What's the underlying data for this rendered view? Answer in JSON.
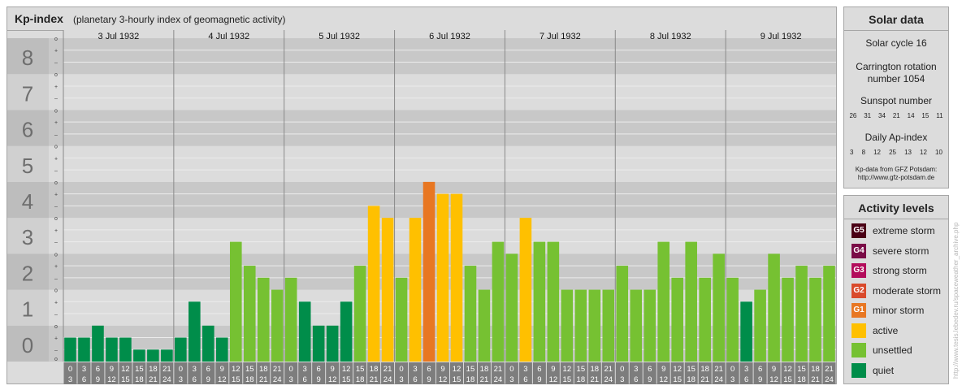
{
  "header": {
    "title": "Kp-index",
    "subtitle": "(planetary 3-hourly index of geomagnetic activity)"
  },
  "chart_data": {
    "type": "bar",
    "title": "Kp-index",
    "subtitle": "(planetary 3-hourly index of geomagnetic activity)",
    "ylim": [
      0,
      9
    ],
    "y_ticks": [
      "0",
      "1",
      "2",
      "3",
      "4",
      "5",
      "6",
      "7",
      "8",
      "9"
    ],
    "minor_tick_labels": [
      "o",
      "+",
      "–"
    ],
    "days": [
      "3 Jul 1932",
      "4 Jul 1932",
      "5 Jul 1932",
      "6 Jul 1932",
      "7 Jul 1932",
      "8 Jul 1932",
      "9 Jul 1932"
    ],
    "hour_start_labels": [
      "0",
      "3",
      "6",
      "9",
      "12",
      "15",
      "18",
      "21"
    ],
    "hour_end_labels": [
      "3",
      "6",
      "9",
      "12",
      "15",
      "18",
      "21",
      "24"
    ],
    "values": [
      0.667,
      0.667,
      1.0,
      0.667,
      0.667,
      0.333,
      0.333,
      0.333,
      0.667,
      1.667,
      1.0,
      0.667,
      3.333,
      2.667,
      2.333,
      2.0,
      2.333,
      1.667,
      1.0,
      1.0,
      1.667,
      2.667,
      4.333,
      4.0,
      2.333,
      4.0,
      5.0,
      4.667,
      4.667,
      2.667,
      2.0,
      3.333,
      3.0,
      4.0,
      3.333,
      3.333,
      2.0,
      2.0,
      2.0,
      2.0,
      2.667,
      2.0,
      2.0,
      3.333,
      2.333,
      3.333,
      2.333,
      3.0,
      2.333,
      1.667,
      2.0,
      3.0,
      2.333,
      2.667,
      2.333,
      2.667
    ],
    "level_colors": {
      "quiet": "#008d4a",
      "unsettled": "#76c132",
      "active": "#ffc000",
      "minor": "#e87722",
      "moderate": "#d94a2b",
      "strong": "#b30d5c",
      "severe": "#7a0c47",
      "extreme": "#4a0015"
    }
  },
  "solar": {
    "heading": "Solar data",
    "cycle": "Solar cycle 16",
    "carrington_line1": "Carrington rotation",
    "carrington_line2": "number 1054",
    "sunspot_heading": "Sunspot number",
    "sunspot_values": [
      "26",
      "31",
      "34",
      "21",
      "14",
      "15",
      "11"
    ],
    "ap_heading": "Daily Ap-index",
    "ap_values": [
      "3",
      "8",
      "12",
      "25",
      "13",
      "12",
      "10"
    ],
    "credit_line1": "Kp-data from GFZ Potsdam:",
    "credit_line2": "http://www.gfz-potsdam.de"
  },
  "activity": {
    "heading": "Activity levels",
    "levels": [
      {
        "badge": "G5",
        "label": "extreme storm",
        "color": "#4a0015"
      },
      {
        "badge": "G4",
        "label": "severe storm",
        "color": "#7a0c47"
      },
      {
        "badge": "G3",
        "label": "strong storm",
        "color": "#b30d5c"
      },
      {
        "badge": "G2",
        "label": "moderate storm",
        "color": "#d94a2b"
      },
      {
        "badge": "G1",
        "label": "minor storm",
        "color": "#e87722"
      },
      {
        "badge": "",
        "label": "active",
        "color": "#ffc000"
      },
      {
        "badge": "",
        "label": "unsettled",
        "color": "#76c132"
      },
      {
        "badge": "",
        "label": "quiet",
        "color": "#008d4a"
      }
    ]
  },
  "watermark": "http://www.tesis.lebedev.ru/spaceweather_archive.php"
}
